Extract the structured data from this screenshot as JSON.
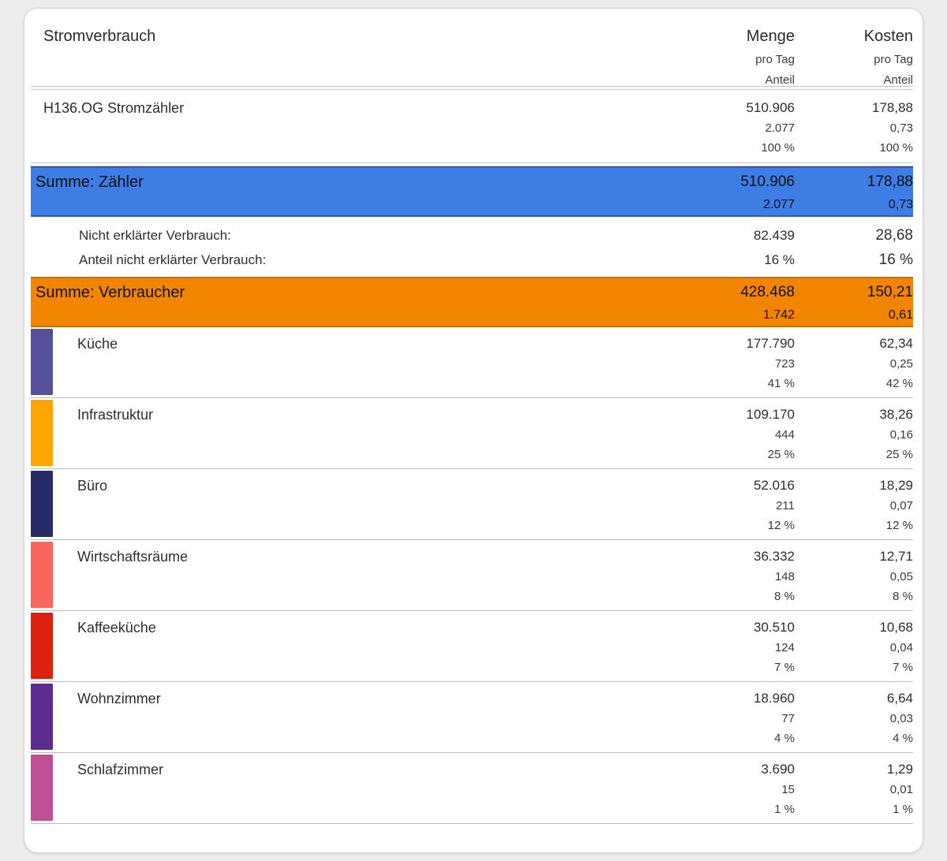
{
  "table": {
    "title": "Stromverbrauch",
    "columns": {
      "menge": {
        "label": "Menge",
        "sub1": "pro Tag",
        "sub2": "Anteil"
      },
      "kosten": {
        "label": "Kosten",
        "sub1": "pro Tag",
        "sub2": "Anteil"
      }
    },
    "meter_row": {
      "label": "H136.OG Stromzähler",
      "menge": [
        "510.906",
        "2.077",
        "100 %"
      ],
      "kosten": [
        "178,88",
        "0,73",
        "100 %"
      ]
    },
    "sum_meters": {
      "label": "Summe: Zähler",
      "menge": [
        "510.906",
        "2.077"
      ],
      "kosten": [
        "178,88",
        "0,73"
      ],
      "color": "#3d7de4",
      "border_color": "#2c5cb4"
    },
    "unexplained": {
      "row1": {
        "label": "Nicht erklärter Verbrauch:",
        "menge": "82.439",
        "kosten": "28,68"
      },
      "row2": {
        "label": "Anteil nicht erklärter Verbrauch:",
        "menge": "16 %",
        "kosten": "16 %"
      }
    },
    "sum_consumers": {
      "label": "Summe: Verbraucher",
      "menge": [
        "428.468",
        "1.742"
      ],
      "kosten": [
        "150,21",
        "0,61"
      ],
      "color": "#f28500",
      "border_color": "#c96e00"
    },
    "categories": [
      {
        "label": "Küche",
        "color": "#57509a",
        "menge": [
          "177.790",
          "723",
          "41 %"
        ],
        "kosten": [
          "62,34",
          "0,25",
          "42 %"
        ]
      },
      {
        "label": "Infrastruktur",
        "color": "#ffa502",
        "menge": [
          "109.170",
          "444",
          "25 %"
        ],
        "kosten": [
          "38,26",
          "0,16",
          "25 %"
        ]
      },
      {
        "label": "Büro",
        "color": "#272c69",
        "menge": [
          "52.016",
          "211",
          "12 %"
        ],
        "kosten": [
          "18,29",
          "0,07",
          "12 %"
        ]
      },
      {
        "label": "Wirtschaftsräume",
        "color": "#f9665e",
        "menge": [
          "36.332",
          "148",
          "8 %"
        ],
        "kosten": [
          "12,71",
          "0,05",
          "8 %"
        ]
      },
      {
        "label": "Kaffeeküche",
        "color": "#dc2110",
        "menge": [
          "30.510",
          "124",
          "7 %"
        ],
        "kosten": [
          "10,68",
          "0,04",
          "7 %"
        ]
      },
      {
        "label": "Wohnzimmer",
        "color": "#5d2c90",
        "menge": [
          "18.960",
          "77",
          "4 %"
        ],
        "kosten": [
          "6,64",
          "0,03",
          "4 %"
        ]
      },
      {
        "label": "Schlafzimmer",
        "color": "#c05095",
        "menge": [
          "3.690",
          "15",
          "1 %"
        ],
        "kosten": [
          "1,29",
          "0,01",
          "1 %"
        ]
      }
    ]
  }
}
